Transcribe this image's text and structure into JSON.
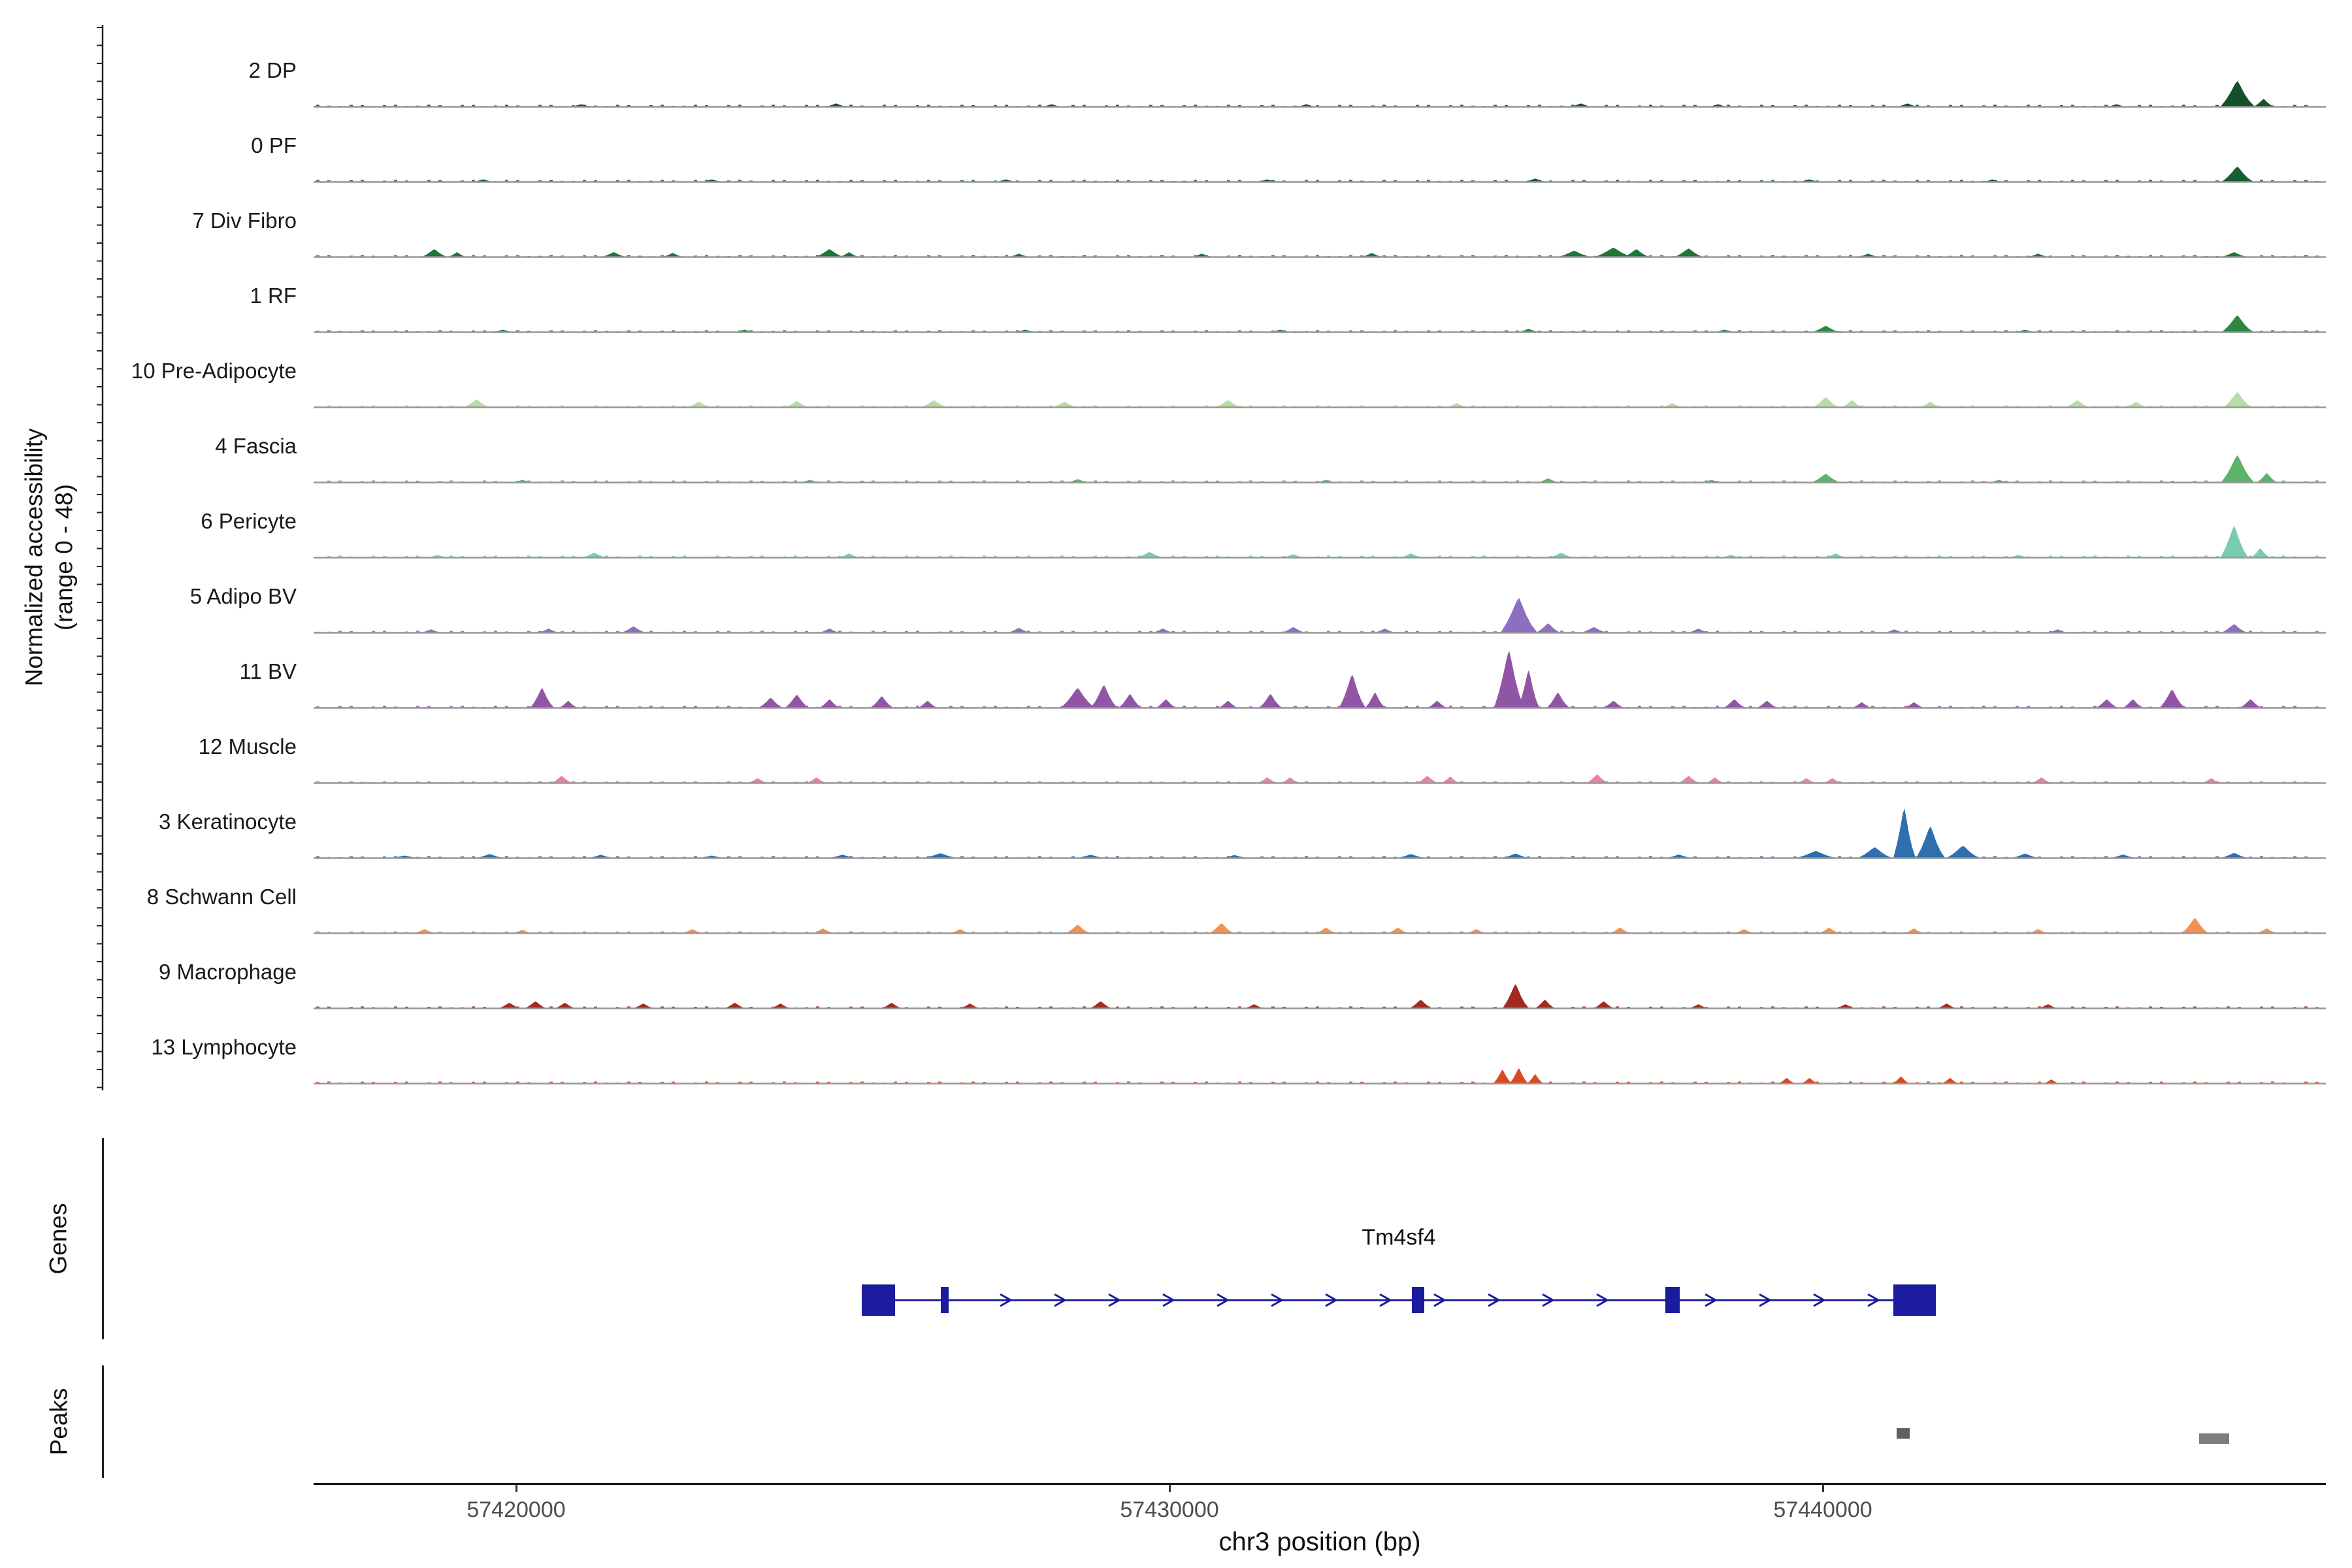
{
  "figure": {
    "y_axis_label_line1": "Normalized accessibility",
    "y_axis_label_line2": "(range 0 - 48)",
    "genes_label": "Genes",
    "peaks_label": "Peaks",
    "x_axis_title": "chr3 position (bp)"
  },
  "chart_data": {
    "type": "area",
    "subtype": "genome-accessibility-coverage-tracks",
    "title": "",
    "xlabel": "chr3 position (bp)",
    "ylabel": "Normalized accessibility (range 0 - 48)",
    "region": {
      "chrom": "chr3",
      "start": 57416900,
      "end": 57447700,
      "units": "bp"
    },
    "y_range": [
      0,
      48
    ],
    "x_ticks": [
      57420000,
      57430000,
      57440000
    ],
    "x_tick_labels": [
      "57420000",
      "57430000",
      "57440000"
    ],
    "tracks": [
      {
        "name": "2 DP",
        "color": "#15502b",
        "peaks": [
          [
            57421000,
            1.5,
            150
          ],
          [
            57424900,
            2,
            150
          ],
          [
            57428200,
            1.5,
            130
          ],
          [
            57432100,
            1.5,
            130
          ],
          [
            57436300,
            2,
            150
          ],
          [
            57438400,
            1.5,
            130
          ],
          [
            57441300,
            2,
            150
          ],
          [
            57444500,
            1.5,
            130
          ],
          [
            57446350,
            17,
            260
          ],
          [
            57446750,
            5,
            150
          ]
        ]
      },
      {
        "name": "0 PF",
        "color": "#1a5c33",
        "peaks": [
          [
            57419500,
            1.5,
            140
          ],
          [
            57423000,
            1.5,
            140
          ],
          [
            57427500,
            1.5,
            140
          ],
          [
            57431500,
            1.5,
            140
          ],
          [
            57435600,
            2,
            160
          ],
          [
            57439800,
            1.5,
            140
          ],
          [
            57442600,
            1.5,
            130
          ],
          [
            57446350,
            10,
            240
          ]
        ]
      },
      {
        "name": "7 Div Fibro",
        "color": "#1e7638",
        "peaks": [
          [
            57418750,
            5,
            190
          ],
          [
            57419100,
            3,
            130
          ],
          [
            57421500,
            3,
            180
          ],
          [
            57422400,
            2.5,
            150
          ],
          [
            57424800,
            5,
            210
          ],
          [
            57425100,
            3,
            140
          ],
          [
            57427700,
            2,
            150
          ],
          [
            57430500,
            2,
            150
          ],
          [
            57433100,
            2.5,
            150
          ],
          [
            57436200,
            4,
            240
          ],
          [
            57436800,
            6,
            280
          ],
          [
            57437150,
            5,
            190
          ],
          [
            57437950,
            5.5,
            210
          ],
          [
            57440700,
            2,
            150
          ],
          [
            57443300,
            2,
            150
          ],
          [
            57446300,
            3,
            190
          ]
        ]
      },
      {
        "name": "1 RF",
        "color": "#2c8743",
        "peaks": [
          [
            57419800,
            1.5,
            140
          ],
          [
            57423500,
            1.5,
            140
          ],
          [
            57427800,
            1.5,
            140
          ],
          [
            57431700,
            1.5,
            140
          ],
          [
            57435500,
            2,
            150
          ],
          [
            57438500,
            1.5,
            140
          ],
          [
            57440050,
            4,
            200
          ],
          [
            57443100,
            1.5,
            130
          ],
          [
            57446350,
            11,
            240
          ]
        ]
      },
      {
        "name": "10 Pre-Adipocyte",
        "color": "#b9dca2",
        "peaks": [
          [
            57419400,
            5,
            190
          ],
          [
            57422800,
            3.5,
            170
          ],
          [
            57424300,
            4,
            170
          ],
          [
            57426400,
            4.5,
            190
          ],
          [
            57428400,
            3.5,
            170
          ],
          [
            57430900,
            4.5,
            190
          ],
          [
            57434400,
            2.5,
            150
          ],
          [
            57437700,
            2.5,
            150
          ],
          [
            57440050,
            6.5,
            190
          ],
          [
            57440450,
            4.5,
            150
          ],
          [
            57441650,
            3.5,
            150
          ],
          [
            57443900,
            4.5,
            170
          ],
          [
            57444800,
            3.5,
            150
          ],
          [
            57446350,
            10,
            210
          ]
        ]
      },
      {
        "name": "4 Fascia",
        "color": "#5bb469",
        "peaks": [
          [
            57420100,
            1.5,
            140
          ],
          [
            57424500,
            1.5,
            140
          ],
          [
            57428600,
            2,
            150
          ],
          [
            57432400,
            1.5,
            140
          ],
          [
            57435800,
            2.5,
            150
          ],
          [
            57438300,
            1.5,
            140
          ],
          [
            57440050,
            5.5,
            210
          ],
          [
            57442700,
            1.5,
            140
          ],
          [
            57446350,
            18,
            250
          ],
          [
            57446800,
            6,
            150
          ]
        ]
      },
      {
        "name": "6 Pericyte",
        "color": "#7acbb2",
        "peaks": [
          [
            57418800,
            1.5,
            140
          ],
          [
            57421200,
            3,
            170
          ],
          [
            57425100,
            2.5,
            150
          ],
          [
            57429700,
            3.5,
            190
          ],
          [
            57431900,
            2,
            150
          ],
          [
            57433700,
            2.5,
            150
          ],
          [
            57436000,
            3,
            170
          ],
          [
            57438600,
            1.5,
            140
          ],
          [
            57440200,
            2.5,
            150
          ],
          [
            57443000,
            1.5,
            140
          ],
          [
            57446300,
            21,
            210
          ],
          [
            57446700,
            6,
            140
          ]
        ]
      },
      {
        "name": "5 Adipo BV",
        "color": "#8e6ec0",
        "peaks": [
          [
            57418700,
            2,
            150
          ],
          [
            57420500,
            2.5,
            150
          ],
          [
            57421800,
            4,
            180
          ],
          [
            57424800,
            2.5,
            150
          ],
          [
            57427700,
            3,
            160
          ],
          [
            57429900,
            2.5,
            150
          ],
          [
            57431900,
            3.5,
            170
          ],
          [
            57433300,
            2.5,
            150
          ],
          [
            57435350,
            23,
            280
          ],
          [
            57435800,
            6,
            180
          ],
          [
            57436500,
            3.5,
            190
          ],
          [
            57438100,
            2.5,
            150
          ],
          [
            57441100,
            2,
            140
          ],
          [
            57443600,
            2,
            140
          ],
          [
            57446300,
            5.5,
            190
          ]
        ]
      },
      {
        "name": "11 BV",
        "color": "#9155a6",
        "peaks": [
          [
            57420400,
            13,
            180
          ],
          [
            57420800,
            4.5,
            130
          ],
          [
            57423900,
            6.5,
            180
          ],
          [
            57424300,
            8.5,
            180
          ],
          [
            57424800,
            5.5,
            150
          ],
          [
            57425600,
            7.5,
            170
          ],
          [
            57426300,
            4.5,
            140
          ],
          [
            57428600,
            13,
            260
          ],
          [
            57429000,
            15,
            200
          ],
          [
            57429400,
            9,
            170
          ],
          [
            57429950,
            5.5,
            150
          ],
          [
            57430900,
            4.5,
            140
          ],
          [
            57431550,
            9,
            170
          ],
          [
            57432800,
            22,
            200
          ],
          [
            57433150,
            10,
            150
          ],
          [
            57434100,
            4.5,
            140
          ],
          [
            57435200,
            38,
            230
          ],
          [
            57435500,
            25,
            160
          ],
          [
            57435950,
            10,
            170
          ],
          [
            57436800,
            4.5,
            150
          ],
          [
            57438650,
            5.5,
            160
          ],
          [
            57439150,
            4.5,
            150
          ],
          [
            57440600,
            3.5,
            140
          ],
          [
            57441400,
            3.5,
            140
          ],
          [
            57444350,
            5.5,
            160
          ],
          [
            57444750,
            5.5,
            150
          ],
          [
            57445350,
            12,
            190
          ],
          [
            57446550,
            5.5,
            160
          ]
        ]
      },
      {
        "name": "12 Muscle",
        "color": "#ee7ea2",
        "peaks": [
          [
            57420700,
            4.5,
            150
          ],
          [
            57423700,
            3,
            140
          ],
          [
            57424600,
            3.5,
            140
          ],
          [
            57431500,
            3.5,
            140
          ],
          [
            57431850,
            3.5,
            130
          ],
          [
            57433950,
            4.5,
            150
          ],
          [
            57434300,
            4,
            130
          ],
          [
            57436550,
            5.5,
            160
          ],
          [
            57437950,
            4.5,
            150
          ],
          [
            57438350,
            3.5,
            130
          ],
          [
            57439750,
            3,
            130
          ],
          [
            57440150,
            3,
            130
          ],
          [
            57443350,
            3.5,
            140
          ],
          [
            57445950,
            3,
            130
          ]
        ]
      },
      {
        "name": "3 Keratinocyte",
        "color": "#2e6fad",
        "peaks": [
          [
            57418300,
            1.5,
            200
          ],
          [
            57419600,
            2.5,
            200
          ],
          [
            57421300,
            2,
            180
          ],
          [
            57423000,
            1.5,
            180
          ],
          [
            57425000,
            2,
            200
          ],
          [
            57426500,
            3,
            250
          ],
          [
            57428800,
            2,
            200
          ],
          [
            57431000,
            1.8,
            180
          ],
          [
            57433700,
            2.5,
            200
          ],
          [
            57435300,
            2.8,
            200
          ],
          [
            57437800,
            2.2,
            180
          ],
          [
            57439900,
            4.5,
            300
          ],
          [
            57440800,
            7,
            260
          ],
          [
            57441250,
            33,
            170
          ],
          [
            57441650,
            21,
            220
          ],
          [
            57442150,
            8,
            250
          ],
          [
            57443100,
            2.8,
            200
          ],
          [
            57444600,
            2.2,
            180
          ],
          [
            57446300,
            3.2,
            200
          ]
        ]
      },
      {
        "name": "8 Schwann Cell",
        "color": "#f68f51",
        "peaks": [
          [
            57418600,
            2.5,
            150
          ],
          [
            57420100,
            2,
            140
          ],
          [
            57422700,
            2.5,
            150
          ],
          [
            57424700,
            3,
            150
          ],
          [
            57426800,
            2.5,
            140
          ],
          [
            57428600,
            5.5,
            180
          ],
          [
            57430800,
            6.5,
            180
          ],
          [
            57432400,
            3.5,
            150
          ],
          [
            57433500,
            3.5,
            150
          ],
          [
            57434700,
            2.5,
            140
          ],
          [
            57436900,
            3.5,
            150
          ],
          [
            57438800,
            2.5,
            140
          ],
          [
            57440100,
            3.5,
            150
          ],
          [
            57441400,
            3,
            140
          ],
          [
            57443300,
            2.5,
            140
          ],
          [
            57445700,
            10,
            200
          ],
          [
            57446800,
            3,
            140
          ]
        ]
      },
      {
        "name": "9 Macrophage",
        "color": "#a22a1f",
        "peaks": [
          [
            57419900,
            3.5,
            160
          ],
          [
            57420300,
            4.5,
            160
          ],
          [
            57420750,
            3.5,
            150
          ],
          [
            57421950,
            3,
            150
          ],
          [
            57423350,
            3.5,
            150
          ],
          [
            57424050,
            3,
            140
          ],
          [
            57425750,
            3.5,
            150
          ],
          [
            57426950,
            3,
            140
          ],
          [
            57428950,
            4.5,
            160
          ],
          [
            57431300,
            2.5,
            140
          ],
          [
            57433850,
            5.5,
            170
          ],
          [
            57435300,
            16,
            200
          ],
          [
            57435750,
            5.5,
            150
          ],
          [
            57436650,
            4.5,
            150
          ],
          [
            57438100,
            2.5,
            140
          ],
          [
            57440350,
            2.5,
            140
          ],
          [
            57441900,
            3,
            140
          ],
          [
            57443450,
            2.5,
            140
          ]
        ]
      },
      {
        "name": "13 Lymphocyte",
        "color": "#dc491e",
        "peaks": [
          [
            57435100,
            9,
            140
          ],
          [
            57435350,
            10,
            140
          ],
          [
            57435600,
            6,
            120
          ],
          [
            57439450,
            3.5,
            120
          ],
          [
            57439800,
            3.5,
            120
          ],
          [
            57441200,
            4.5,
            120
          ],
          [
            57441950,
            3.5,
            120
          ],
          [
            57443500,
            2.5,
            110
          ]
        ]
      }
    ],
    "gene_track": {
      "label": "Genes",
      "genes": [
        {
          "name": "Tm4sf4",
          "strand": "+",
          "start": 57425290,
          "end": 57441730,
          "color": "#1b1b9e",
          "exons": [
            [
              57425290,
              57425800,
              1
            ],
            [
              57426500,
              57426620,
              0
            ],
            [
              57433710,
              57433900,
              0
            ],
            [
              57437590,
              57437810,
              0
            ],
            [
              57441080,
              57441730,
              1
            ]
          ]
        }
      ]
    },
    "peak_track": {
      "label": "Peaks",
      "peaks": [
        {
          "start": 57441130,
          "end": 57441330,
          "color": "#5f5f5f"
        },
        {
          "start": 57445760,
          "end": 57446220,
          "color": "#7d7d7d"
        }
      ]
    }
  }
}
